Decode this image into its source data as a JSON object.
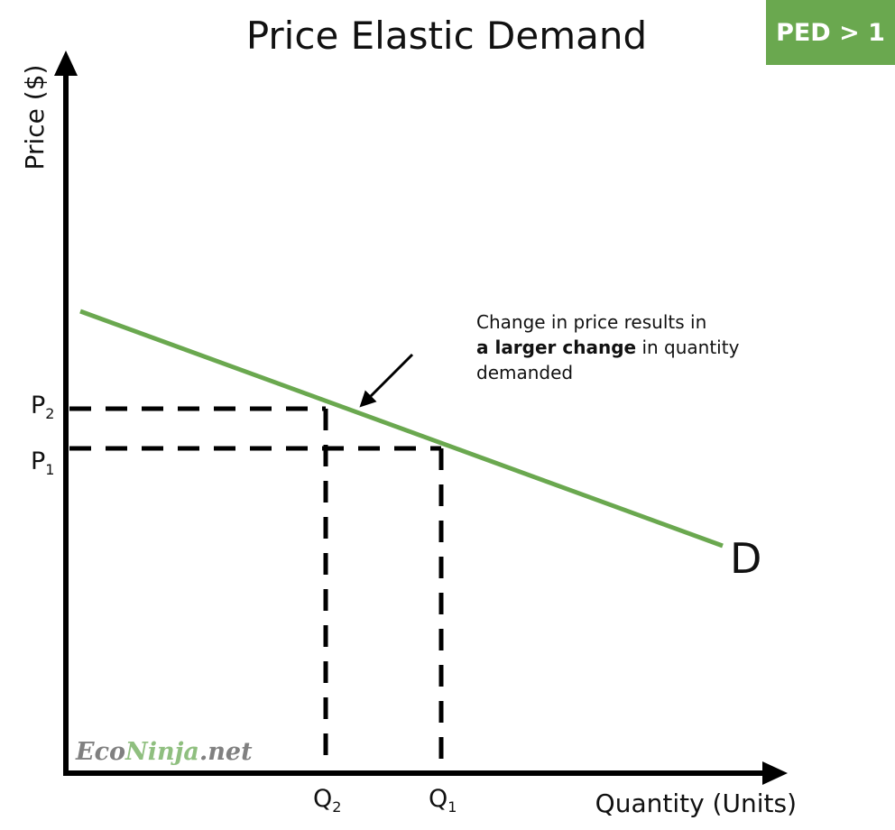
{
  "chart_data": {
    "type": "line",
    "title": "Price Elastic Demand",
    "badge": "PED > 1",
    "xlabel": "Quantity (Units)",
    "ylabel": "Price ($)",
    "xlim": [
      0,
      100
    ],
    "ylim": [
      0,
      100
    ],
    "grid": false,
    "series": [
      {
        "name": "D",
        "color": "#6aa84f",
        "x": [
          2,
          91
        ],
        "y": [
          64,
          31.5
        ]
      }
    ],
    "points": [
      {
        "x_label": "Q",
        "x_sub": "2",
        "y_label": "P",
        "y_sub": "2",
        "x": 36,
        "y": 50.5
      },
      {
        "x_label": "Q",
        "x_sub": "1",
        "y_label": "P",
        "y_sub": "1",
        "x": 52,
        "y": 45
      }
    ],
    "annotation": {
      "line1": "Change in price results in",
      "bold": "a larger change",
      "rest": " in quantity",
      "line3": "demanded",
      "arrow_from": [
        48,
        58
      ],
      "arrow_to": [
        41,
        51
      ]
    }
  },
  "watermark": {
    "part1": "Eco",
    "part2": "Ninja",
    "part3": ".net",
    "color1": "#808080",
    "color2": "#8fbf7f"
  }
}
